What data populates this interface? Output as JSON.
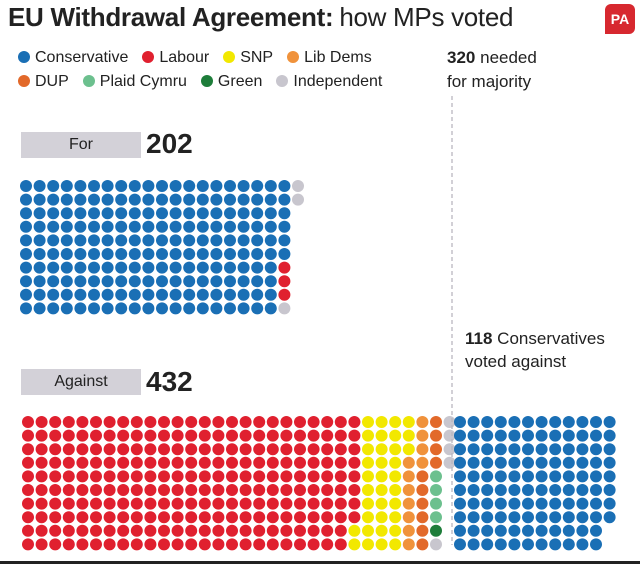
{
  "header": {
    "title_bold": "EU Withdrawal Agreement:",
    "title_rest": "how MPs voted",
    "logo_text": "PA"
  },
  "legend": [
    {
      "name": "Conservative",
      "color": "#1a6fb5"
    },
    {
      "name": "Labour",
      "color": "#e0202f"
    },
    {
      "name": "SNP",
      "color": "#f2e800"
    },
    {
      "name": "Lib Dems",
      "color": "#f0923b"
    },
    {
      "name": "DUP",
      "color": "#e2692a"
    },
    {
      "name": "Plaid Cymru",
      "color": "#6cc08e"
    },
    {
      "name": "Green",
      "color": "#1e7d3a"
    },
    {
      "name": "Independent",
      "color": "#c8c6ce"
    }
  ],
  "annotations": {
    "majority_value": "320",
    "majority_line1": "needed",
    "majority_line2": "for majority",
    "against_cons_value": "118",
    "against_cons_line1": "Conservatives",
    "against_cons_line2": "voted against"
  },
  "chart_data": {
    "type": "waffle",
    "majority_needed": 320,
    "groups": [
      {
        "label": "For",
        "total": "202",
        "breakdown": [
          {
            "party": "Conservative",
            "votes": 196
          },
          {
            "party": "Labour",
            "votes": 3
          },
          {
            "party": "Independent",
            "votes": 3
          }
        ]
      },
      {
        "label": "Against",
        "total": "432",
        "breakdown": [
          {
            "party": "Labour",
            "votes": 248
          },
          {
            "party": "SNP",
            "votes": 35
          },
          {
            "party": "Lib Dems",
            "votes": 11
          },
          {
            "party": "DUP",
            "votes": 10
          },
          {
            "party": "Plaid Cymru",
            "votes": 4
          },
          {
            "party": "Green",
            "votes": 1
          },
          {
            "party": "Independent",
            "votes": 5
          },
          {
            "party": "Conservative",
            "votes": 118
          }
        ]
      }
    ]
  }
}
